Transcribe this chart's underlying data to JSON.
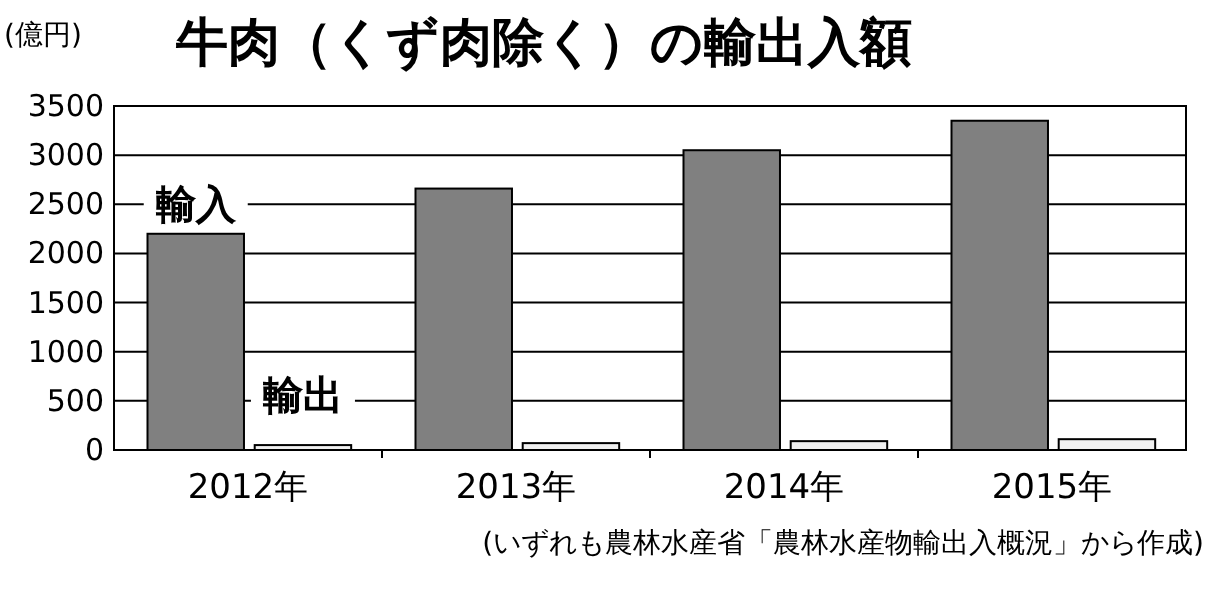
{
  "chart_data": {
    "type": "bar",
    "title": "牛肉（くず肉除く）の輸出入額",
    "ylabel": "(億円)",
    "categories": [
      "2012年",
      "2013年",
      "2014年",
      "2015年"
    ],
    "series": [
      {
        "name": "輸入",
        "color": "#808080",
        "values": [
          2200,
          2660,
          3050,
          3350
        ]
      },
      {
        "name": "輸出",
        "color": "#f0f0f0",
        "values": [
          50,
          70,
          90,
          110
        ]
      }
    ],
    "ylim": [
      0,
      3500
    ],
    "yticks": [
      0,
      500,
      1000,
      1500,
      2000,
      2500,
      3000,
      3500
    ],
    "grid": "y",
    "annotations": [
      "(いずれも農林水産省「農林水産物輸出入概況」から作成)"
    ]
  }
}
